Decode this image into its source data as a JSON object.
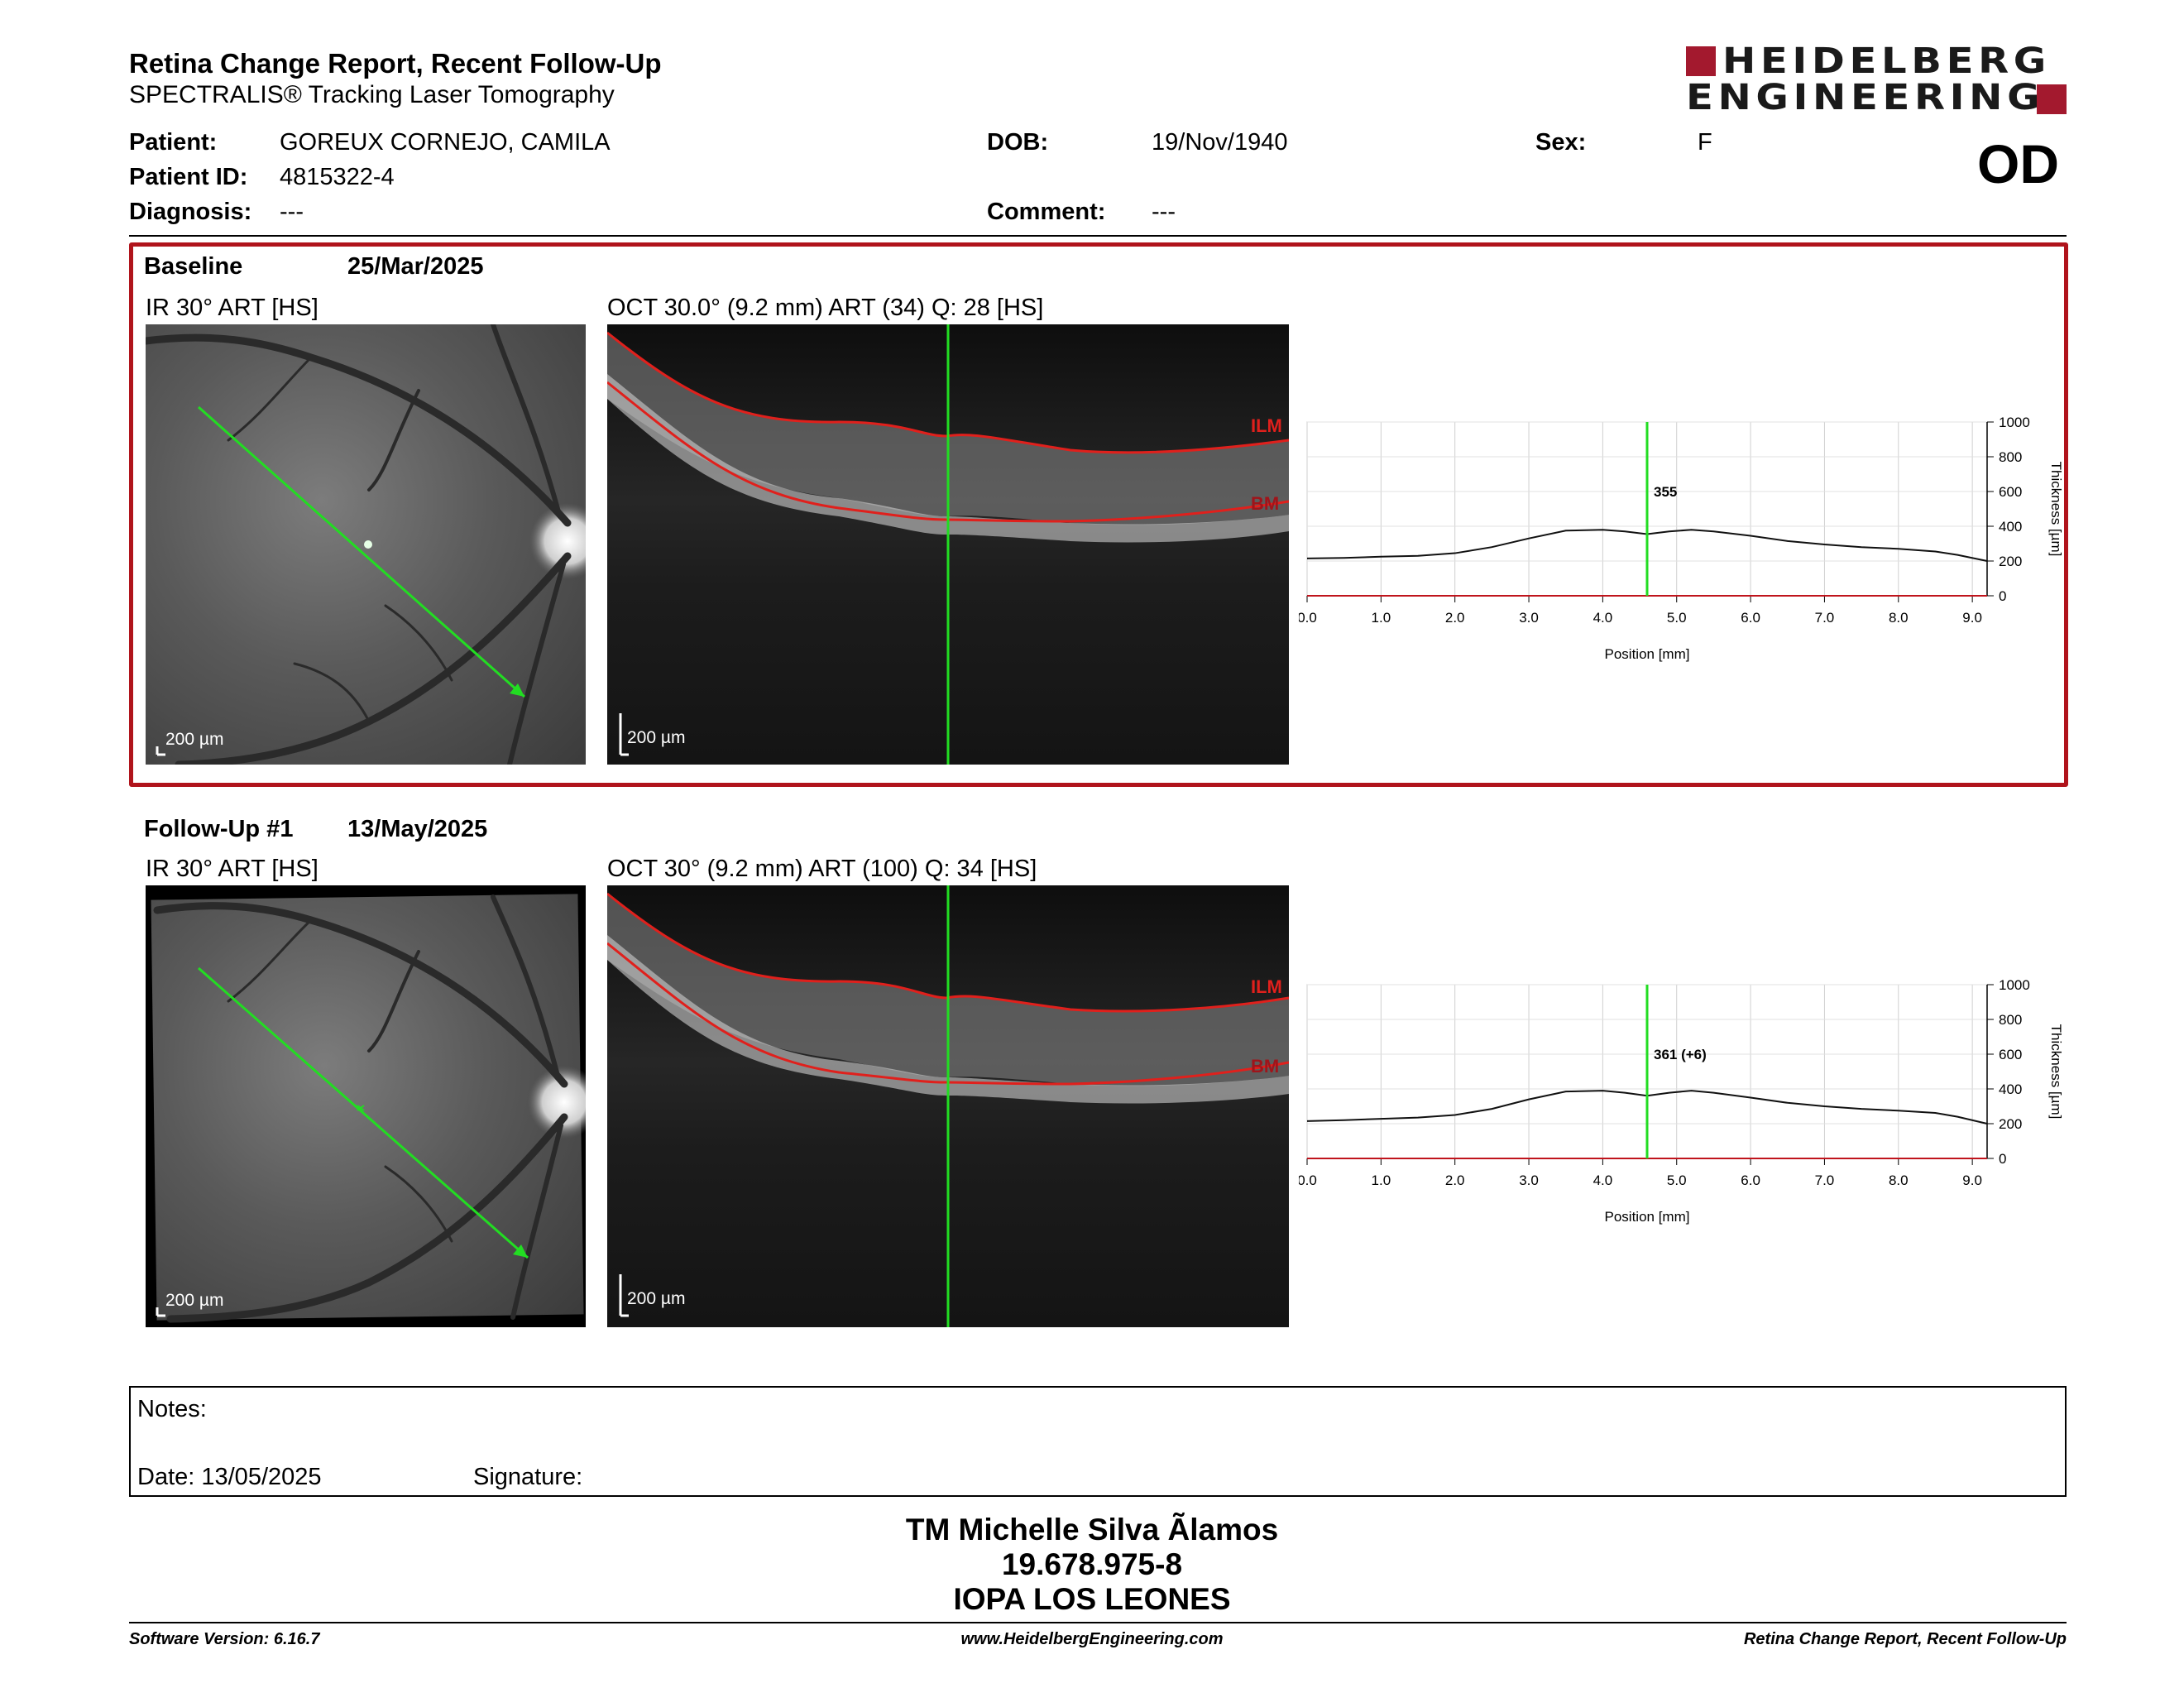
{
  "header": {
    "title": "Retina Change Report, Recent Follow-Up",
    "subtitle": "SPECTRALIS® Tracking Laser Tomography",
    "logo_line1": "HEIDELBERG",
    "logo_line2": "ENGINEERING",
    "eye": "OD"
  },
  "patient": {
    "name_label": "Patient:",
    "name": "GOREUX CORNEJO, CAMILA",
    "id_label": "Patient ID:",
    "id": "4815322-4",
    "diagnosis_label": "Diagnosis:",
    "diagnosis": "---",
    "dob_label": "DOB:",
    "dob": "19/Nov/1940",
    "comment_label": "Comment:",
    "comment": "---",
    "sex_label": "Sex:",
    "sex": "F"
  },
  "exams": [
    {
      "label": "Baseline",
      "date": "25/Mar/2025",
      "ir_label": "IR 30° ART [HS]",
      "oct_label": "OCT 30.0° (9.2 mm) ART (34) Q: 28 [HS]",
      "scale": "200 µm",
      "ilm": "ILM",
      "bm": "BM",
      "value_label": "355"
    },
    {
      "label": "Follow-Up #1",
      "date": "13/May/2025",
      "ir_label": "IR 30° ART [HS]",
      "oct_label": "OCT 30° (9.2 mm) ART (100) Q: 34 [HS]",
      "scale": "200 µm",
      "ilm": "ILM",
      "bm": "BM",
      "value_label": "361 (+6)"
    }
  ],
  "chart_data": [
    {
      "type": "line",
      "xlabel": "Position [mm]",
      "ylabel": "Thickness [µm]",
      "xlim": [
        0,
        9.2
      ],
      "ylim": [
        0,
        1000
      ],
      "xticks": [
        "0.0",
        "1.0",
        "2.0",
        "3.0",
        "4.0",
        "5.0",
        "6.0",
        "7.0",
        "8.0",
        "9.0"
      ],
      "yticks": [
        "0",
        "200",
        "400",
        "600",
        "800",
        "1000"
      ],
      "grid": true,
      "cursor_x": 4.6,
      "cursor_label": "355",
      "x": [
        0,
        0.5,
        1.0,
        1.5,
        2.0,
        2.5,
        3.0,
        3.5,
        4.0,
        4.3,
        4.6,
        4.9,
        5.2,
        5.5,
        6.0,
        6.5,
        7.0,
        7.5,
        8.0,
        8.5,
        8.8,
        9.2
      ],
      "values": [
        215,
        218,
        225,
        230,
        245,
        280,
        330,
        375,
        380,
        370,
        355,
        370,
        380,
        370,
        345,
        315,
        295,
        280,
        270,
        255,
        235,
        200
      ]
    },
    {
      "type": "line",
      "xlabel": "Position [mm]",
      "ylabel": "Thickness [µm]",
      "xlim": [
        0,
        9.2
      ],
      "ylim": [
        0,
        1000
      ],
      "xticks": [
        "0.0",
        "1.0",
        "2.0",
        "3.0",
        "4.0",
        "5.0",
        "6.0",
        "7.0",
        "8.0",
        "9.0"
      ],
      "yticks": [
        "0",
        "200",
        "400",
        "600",
        "800",
        "1000"
      ],
      "grid": true,
      "cursor_x": 4.6,
      "cursor_label": "361 (+6)",
      "x": [
        0,
        0.5,
        1.0,
        1.5,
        2.0,
        2.5,
        3.0,
        3.5,
        4.0,
        4.3,
        4.6,
        4.9,
        5.2,
        5.5,
        6.0,
        6.5,
        7.0,
        7.5,
        8.0,
        8.5,
        8.8,
        9.2
      ],
      "values": [
        215,
        220,
        228,
        235,
        250,
        285,
        340,
        385,
        390,
        378,
        361,
        378,
        390,
        378,
        350,
        320,
        300,
        285,
        275,
        262,
        240,
        200
      ]
    }
  ],
  "notes": {
    "notes_label": "Notes:",
    "date_label": "Date: 13/05/2025",
    "signature_label": "Signature:"
  },
  "signature": {
    "name": "TM Michelle Silva Ãlamos",
    "rut": "19.678.975-8",
    "institution": "IOPA LOS LEONES"
  },
  "footer": {
    "left": "Software Version: 6.16.7",
    "center": "www.HeidelbergEngineering.com",
    "right": "Retina Change Report, Recent Follow-Up"
  },
  "colors": {
    "accent": "#a3192e",
    "scan_line": "#22dd22",
    "segmentation": "#e0201c"
  }
}
